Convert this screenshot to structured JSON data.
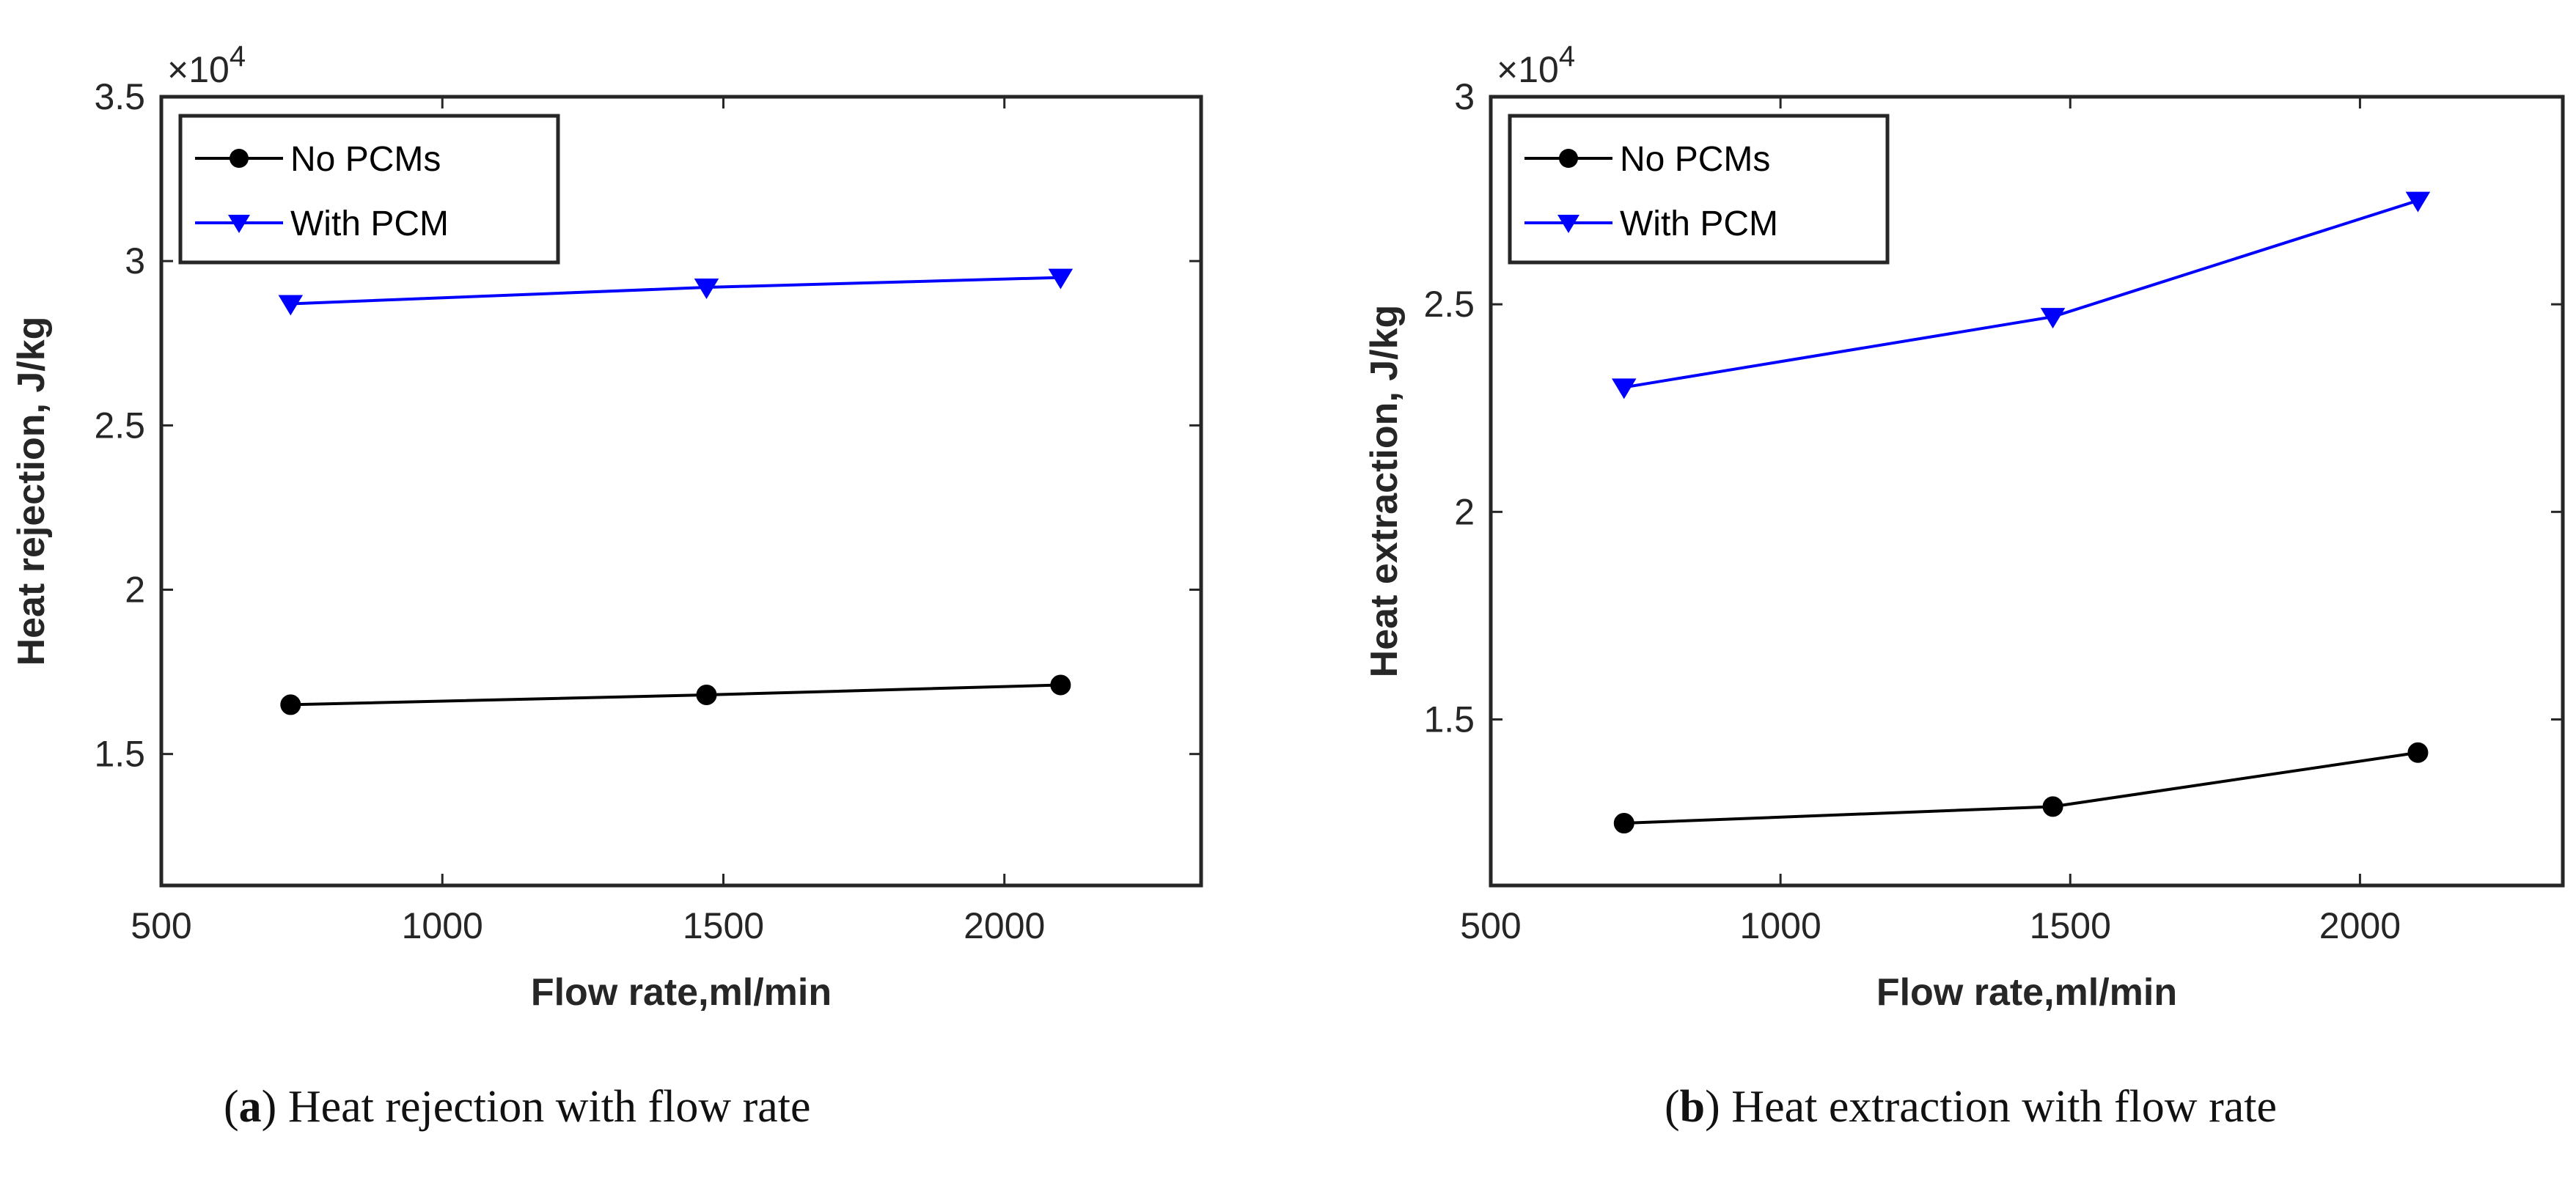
{
  "chart_data": [
    {
      "type": "line",
      "title": "",
      "xlabel": "Flow rate,ml/min",
      "ylabel": "Heat rejection, J/kg",
      "x_ticks": [
        "500",
        "1000",
        "1500",
        "2000"
      ],
      "y_ticks": [
        "1.5",
        "2",
        "2.5",
        "3",
        "3.5"
      ],
      "y_exponent_base": "×10",
      "y_exponent_power": "4",
      "xlim": [
        500,
        2350
      ],
      "ylim": [
        11000,
        35000
      ],
      "x_tick_values": [
        500,
        1000,
        1500,
        2000
      ],
      "y_tick_values": [
        15000,
        20000,
        25000,
        30000,
        35000
      ],
      "legend_position": "top-left",
      "x": [
        730,
        1470,
        2100
      ],
      "series": [
        {
          "name": "No PCMs",
          "values": [
            16500,
            16800,
            17100
          ],
          "color": "#000000",
          "marker": "circle"
        },
        {
          "name": "With PCM",
          "values": [
            28700,
            29200,
            29500
          ],
          "color": "#0000ff",
          "marker": "triangle-down"
        }
      ],
      "caption_label": "a",
      "caption_text": "Heat rejection with flow rate"
    },
    {
      "type": "line",
      "title": "",
      "xlabel": "Flow rate,ml/min",
      "ylabel": "Heat extraction, J/kg",
      "x_ticks": [
        "500",
        "1000",
        "1500",
        "2000"
      ],
      "y_ticks": [
        "1.5",
        "2",
        "2.5",
        "3"
      ],
      "y_exponent_base": "×10",
      "y_exponent_power": "4",
      "xlim": [
        500,
        2350
      ],
      "ylim": [
        11000,
        30000
      ],
      "x_tick_values": [
        500,
        1000,
        1500,
        2000
      ],
      "y_tick_values": [
        15000,
        20000,
        25000,
        30000
      ],
      "legend_position": "top-left",
      "x": [
        730,
        1470,
        2100
      ],
      "series": [
        {
          "name": "No PCMs",
          "values": [
            12500,
            12900,
            14200
          ],
          "color": "#000000",
          "marker": "circle"
        },
        {
          "name": "With PCM",
          "values": [
            23000,
            24700,
            27500
          ],
          "color": "#0000ff",
          "marker": "triangle-down"
        }
      ],
      "caption_label": "b",
      "caption_text": "Heat extraction with flow rate"
    }
  ]
}
